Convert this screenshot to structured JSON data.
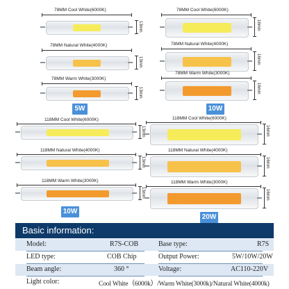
{
  "panels": {
    "p5w": [
      {
        "label": "78MM  Cool White(6000K)",
        "height": "13mm",
        "color": "#f6ec5a"
      },
      {
        "label": "78MM  Natural White(4000K)",
        "height": "13mm",
        "color": "#f7c24a"
      },
      {
        "label": "78MM  Warm White(3000K)",
        "height": "13mm",
        "color": "#f39a2e"
      }
    ],
    "p10w_short": [
      {
        "label": "78MM  Cool White(6000K)",
        "height": "16mm",
        "color": "#f6ec5a"
      },
      {
        "label": "78MM  Natural White(4000K)",
        "height": "16mm",
        "color": "#f7c24a"
      },
      {
        "label": "78MM  Warm White(3000K)",
        "height": "16mm",
        "color": "#f39a2e"
      }
    ],
    "p10w_long": [
      {
        "label": "118MM  Cool White(6000K)",
        "height": "13mm",
        "color": "#f6ec5a"
      },
      {
        "label": "118MM  Natural White(4000K)",
        "height": "13mm",
        "color": "#f7c24a"
      },
      {
        "label": "118MM  Warm White(3000K)",
        "height": "13mm",
        "color": "#f39a2e"
      }
    ],
    "p20w": [
      {
        "label": "118MM  Cool White(6000K)",
        "height": "16mm",
        "color": "#f6ec5a"
      },
      {
        "label": "118MM  Natural White(4000K)",
        "height": "16mm",
        "color": "#f7c24a"
      },
      {
        "label": "118MM  Warm White(3000K)",
        "height": "16mm",
        "color": "#f39a2e"
      }
    ]
  },
  "badges": {
    "w5": "5W",
    "w10_top": "10W",
    "w10_bottom": "10W",
    "w20": "20W",
    "badge_color": "#4a90d9"
  },
  "info": {
    "title": "Basic information:",
    "rows": [
      {
        "l1": "Model:",
        "v1": "R7S-COB",
        "l2": "Base type:",
        "v2": "R7S"
      },
      {
        "l1": "LED type:",
        "v1": "COB Chip",
        "l2": "Output Power:",
        "v2": "5W/10W/20W"
      },
      {
        "l1": "Beam angle:",
        "v1": "360 °",
        "l2": "Voltage:",
        "v2": "AC110-220V"
      },
      {
        "l1": "Light color:",
        "v1": "Cool White（6000k）/Warm White(3000k)/Natural White(4000k)",
        "l2": "",
        "v2": ""
      }
    ]
  }
}
